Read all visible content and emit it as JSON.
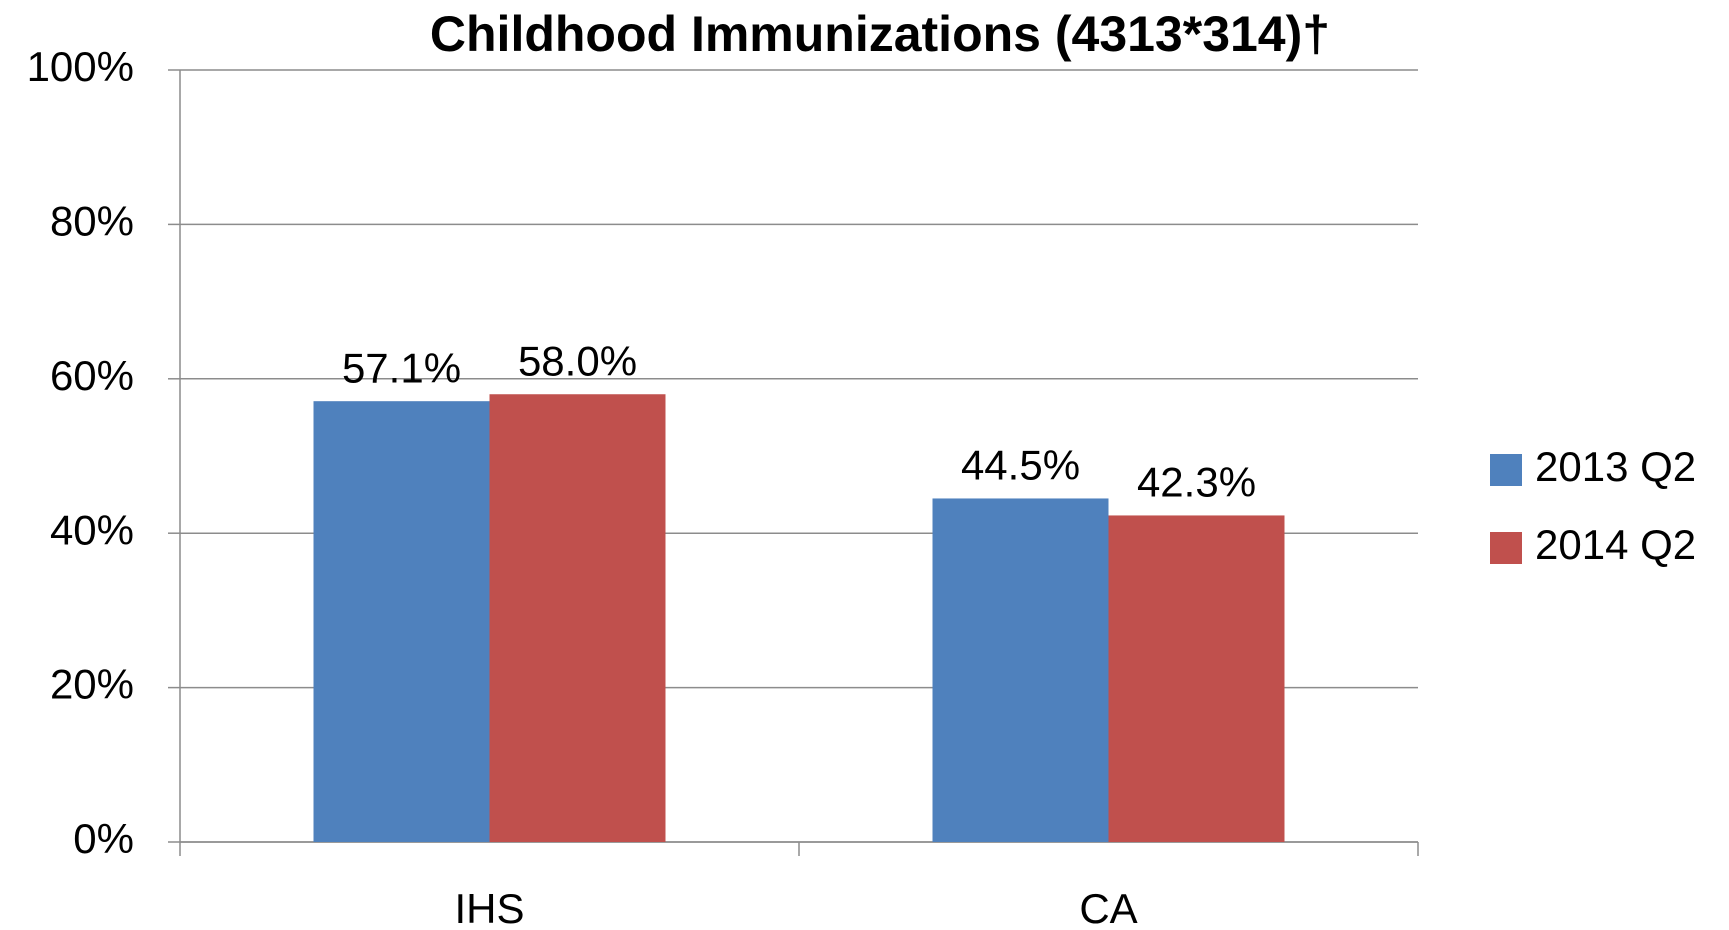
{
  "chart_data": {
    "type": "bar",
    "title": "Childhood Immunizations (4313*314)†",
    "categories": [
      "IHS",
      "CA"
    ],
    "series": [
      {
        "name": "2013 Q2",
        "color": "#4f81bd",
        "values": [
          57.1,
          44.5
        ],
        "value_labels": [
          "57.1%",
          "44.5%"
        ]
      },
      {
        "name": "2014 Q2",
        "color": "#c0504d",
        "values": [
          58.0,
          42.3
        ],
        "value_labels": [
          "58.0%",
          "42.3%"
        ]
      }
    ],
    "ylim": [
      0,
      100
    ],
    "yticks": [
      {
        "value": 0,
        "label": "0%"
      },
      {
        "value": 20,
        "label": "20%"
      },
      {
        "value": 40,
        "label": "40%"
      },
      {
        "value": 60,
        "label": "60%"
      },
      {
        "value": 80,
        "label": "80%"
      },
      {
        "value": 100,
        "label": "100%"
      }
    ],
    "grid": true,
    "legend": "right"
  }
}
